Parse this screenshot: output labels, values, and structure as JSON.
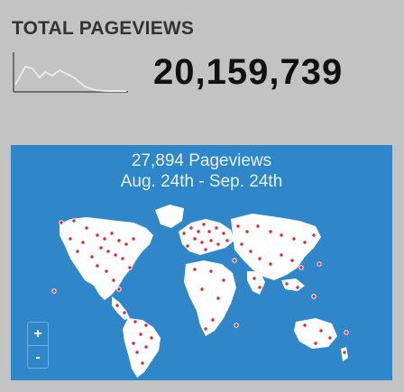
{
  "widget": {
    "title": "TOTAL PAGEVIEWS",
    "total_pageviews": "20,159,739"
  },
  "map_panel": {
    "line1": "27,894 Pageviews",
    "line2": "Aug. 24th - Sep. 24th"
  },
  "zoom_controls": {
    "zoom_in": "+",
    "zoom_out": "-"
  },
  "colors": {
    "background": "#c3c3c3",
    "map_ocean": "#2f86c8",
    "land": "#ffffff",
    "visitor_dot": "#e0282e"
  },
  "icons": [
    "sparkline-chart-icon",
    "world-map-icon",
    "visitor-dot-icon"
  ]
}
